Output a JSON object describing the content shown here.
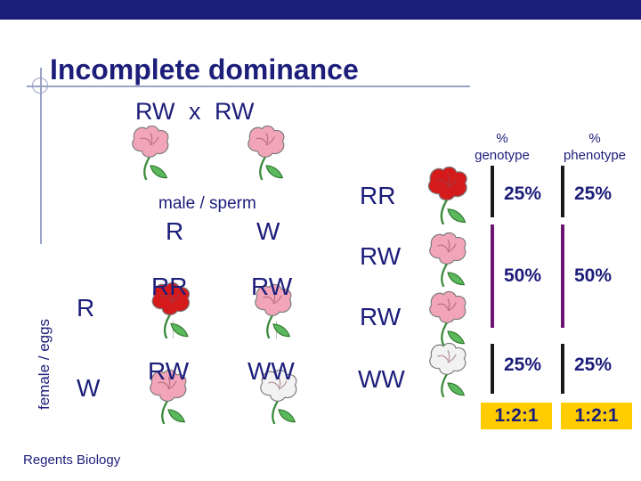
{
  "title": "Incomplete dominance",
  "cross": "RW  x  RW",
  "headers": {
    "genotype_pct": "%",
    "genotype": "genotype",
    "phenotype_pct": "%",
    "phenotype": "phenotype"
  },
  "punnett": {
    "male_label": "male / sperm",
    "female_label": "female / eggs",
    "male_alleles": [
      "R",
      "W"
    ],
    "female_alleles": [
      "R",
      "W"
    ],
    "cells": [
      "RR",
      "RW",
      "RW",
      "WW"
    ]
  },
  "results": [
    {
      "genotype": "RR",
      "genotype_pct": "25%",
      "phenotype_pct": "25%",
      "flower": "red"
    },
    {
      "genotype": "RW",
      "genotype_pct": "50%",
      "phenotype_pct": "50%",
      "flower": "pink"
    },
    {
      "genotype": "RW",
      "flower": "pink"
    },
    {
      "genotype": "WW",
      "genotype_pct": "25%",
      "phenotype_pct": "25%",
      "flower": "white"
    }
  ],
  "ratios": {
    "genotype": "1:2:1",
    "phenotype": "1:2:1"
  },
  "footer": "Regents Biology",
  "colors": {
    "title": "#1c1e7a",
    "bar_red": "#1a1a1a",
    "bar_purple": "#6b1670",
    "ratio_bg": "#ffcc00",
    "red": "#d41a1a",
    "pink": "#f2a5b8",
    "white": "#f2f2f2"
  }
}
